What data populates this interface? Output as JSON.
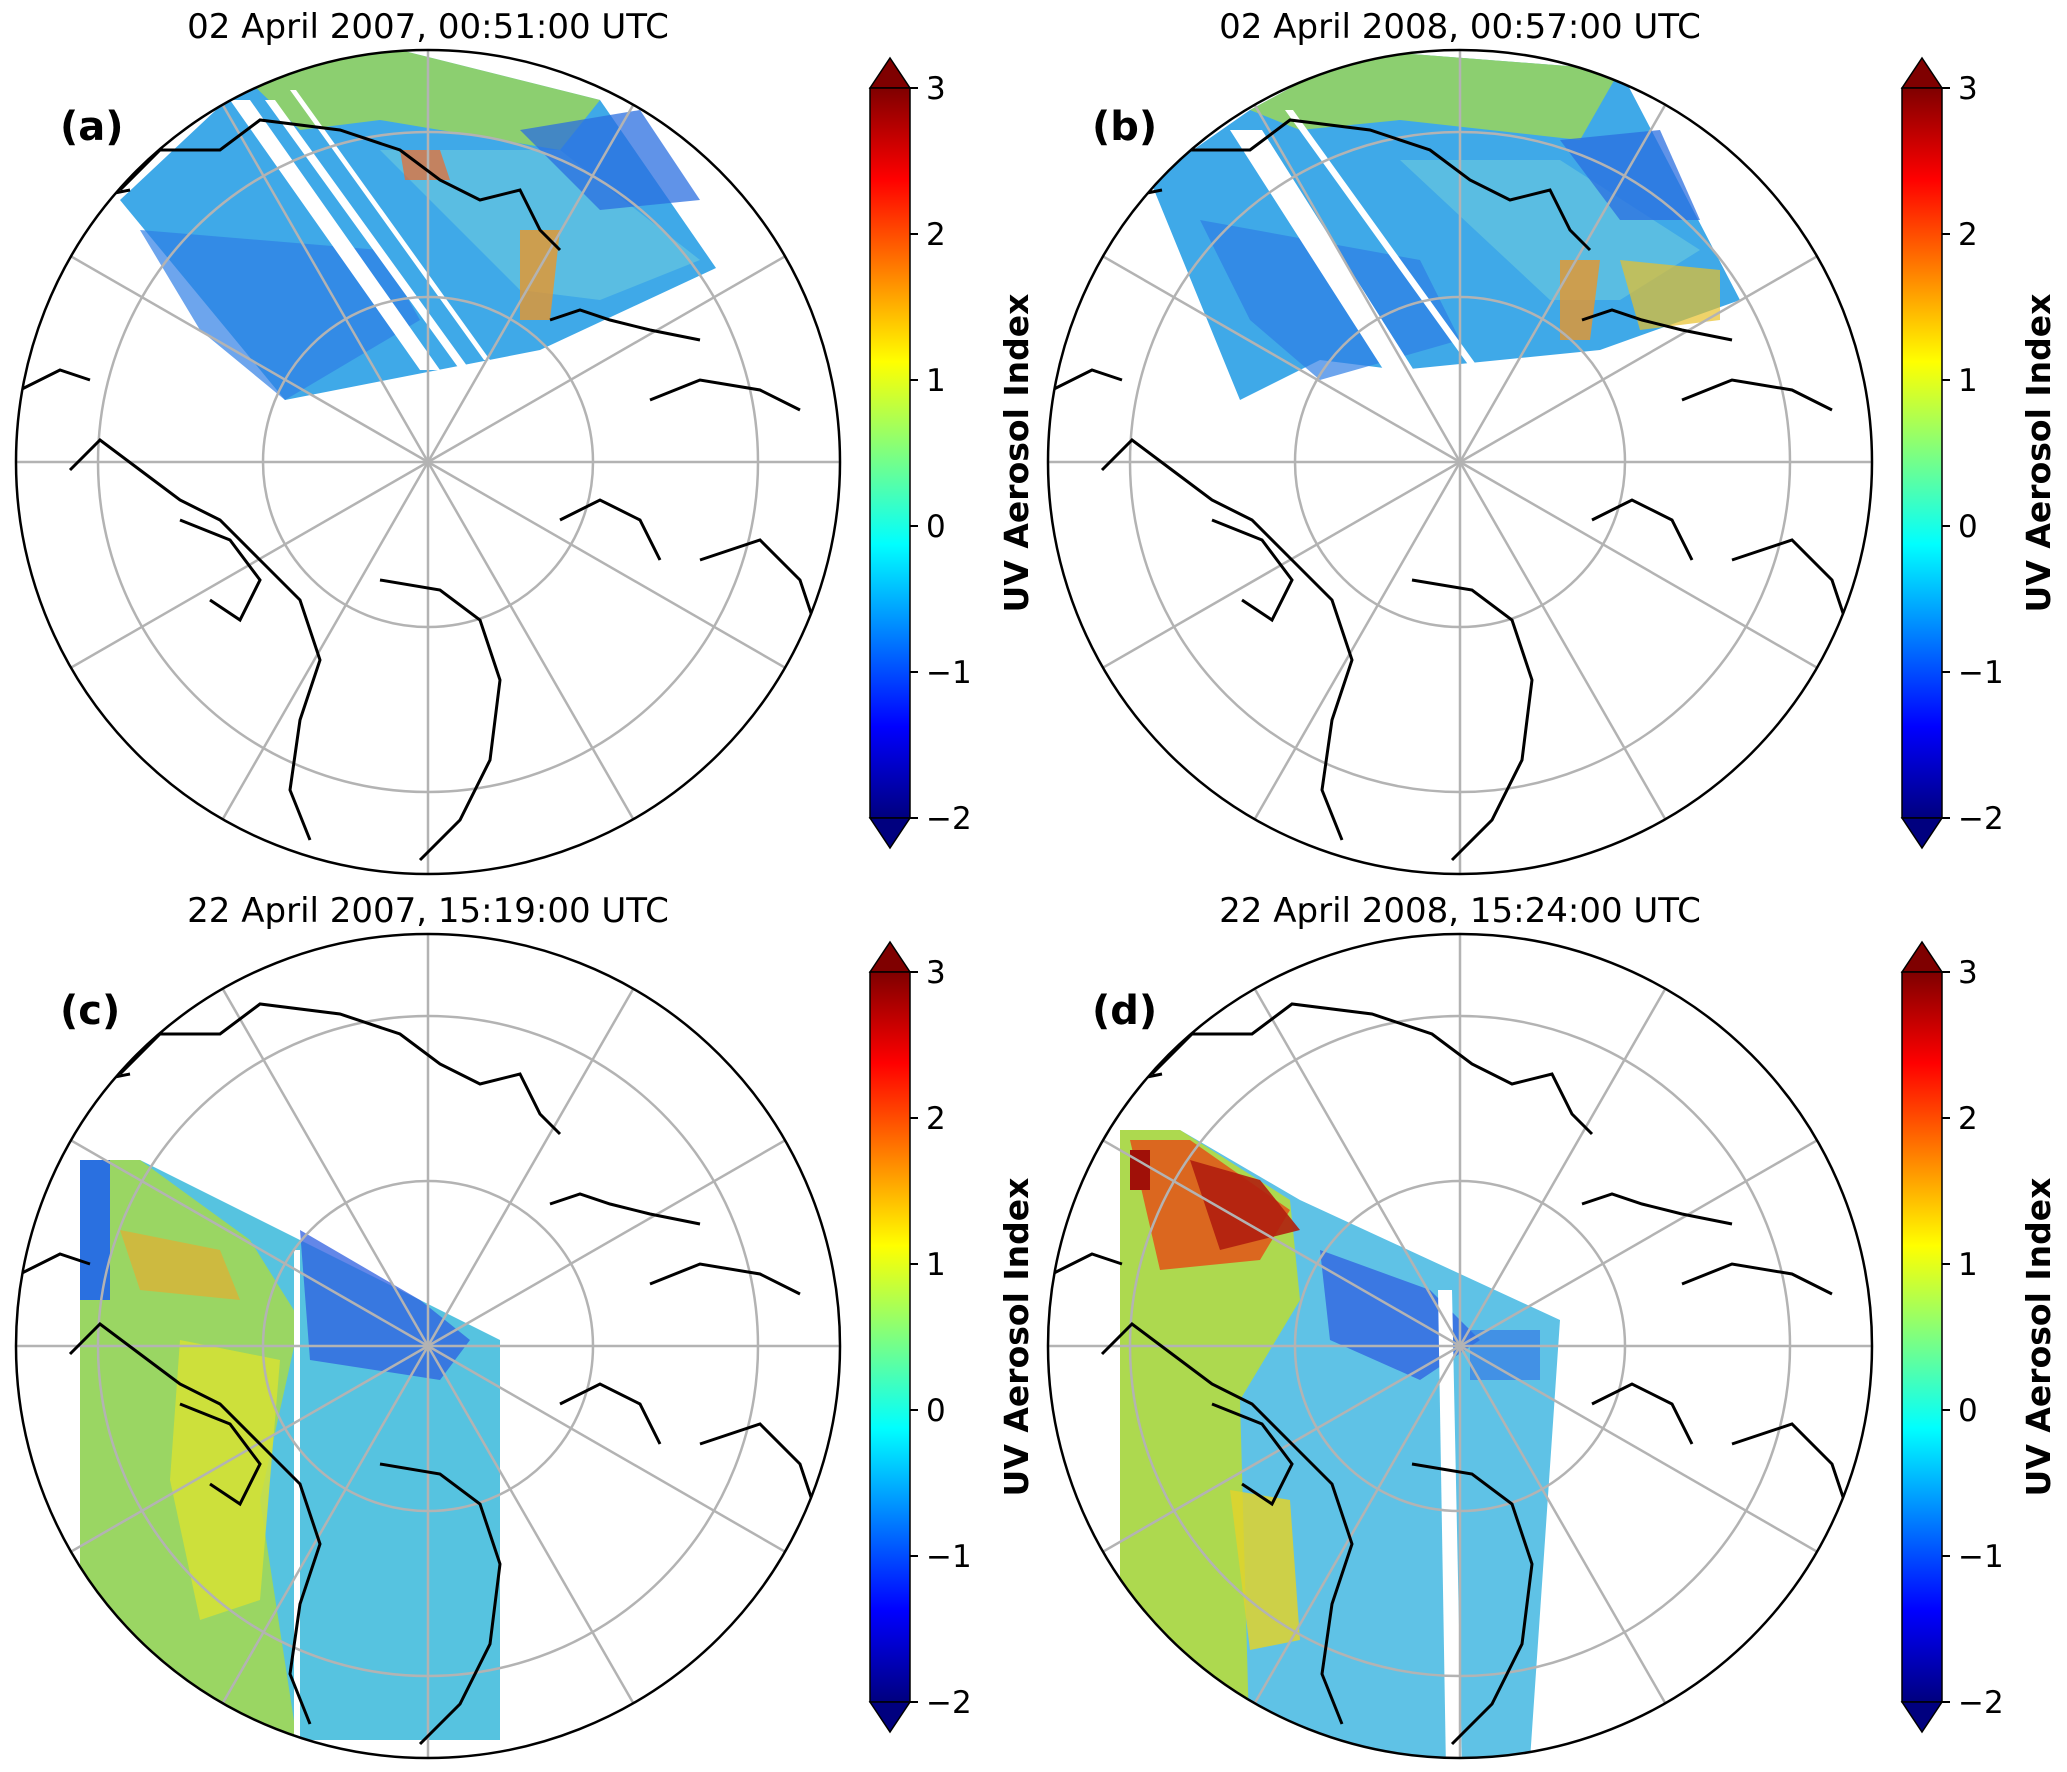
{
  "panels": [
    {
      "id": "a",
      "label": "(a)",
      "title": "02 April 2007, 00:51:00 UTC"
    },
    {
      "id": "b",
      "label": "(b)",
      "title": "02 April 2008, 00:57:00 UTC"
    },
    {
      "id": "c",
      "label": "(c)",
      "title": "22 April 2007, 15:19:00 UTC"
    },
    {
      "id": "d",
      "label": "(d)",
      "title": "22 April 2008, 15:24:00 UTC"
    }
  ],
  "colorbar": {
    "label": "UV Aerosol Index",
    "ticks": [
      "3",
      "2",
      "1",
      "0",
      "−1",
      "−2"
    ],
    "range": [
      -2,
      3
    ],
    "extend": "both",
    "colormap": "jet",
    "colors": [
      "#00007f",
      "#0000ff",
      "#007fff",
      "#00ffff",
      "#7fff7f",
      "#ffff00",
      "#ff7f00",
      "#ff0000",
      "#7f0000"
    ]
  },
  "map": {
    "projection": "north-polar-stereographic",
    "gridline_color": "#b3b3b3",
    "coastline_color": "#000000"
  }
}
